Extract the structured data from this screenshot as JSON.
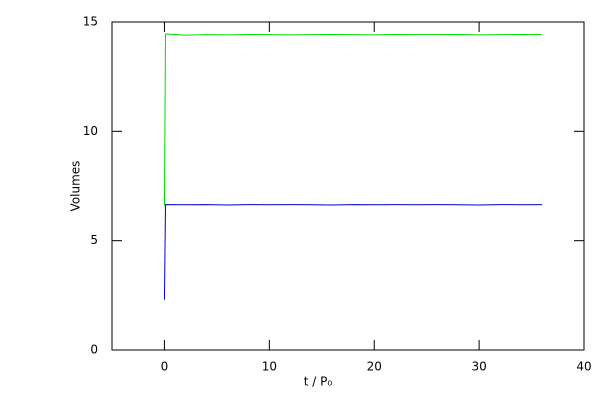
{
  "chart_data": {
    "type": "line",
    "xlabel": "t / P₀",
    "ylabel": "Volumes",
    "x": [
      0,
      0.1,
      2,
      4,
      6,
      8,
      10,
      12,
      14,
      16,
      18,
      20,
      22,
      24,
      26,
      28,
      30,
      32,
      34,
      36
    ],
    "series": [
      {
        "color": "#00dd00",
        "values": [
          6.6,
          14.45,
          14.4,
          14.42,
          14.41,
          14.43,
          14.42,
          14.41,
          14.42,
          14.43,
          14.42,
          14.41,
          14.43,
          14.42,
          14.42,
          14.43,
          14.41,
          14.42,
          14.43,
          14.42
        ]
      },
      {
        "color": "#0000cc",
        "values": [
          2.3,
          6.65,
          6.64,
          6.65,
          6.63,
          6.65,
          6.64,
          6.65,
          6.64,
          6.63,
          6.65,
          6.64,
          6.65,
          6.64,
          6.65,
          6.64,
          6.63,
          6.65,
          6.64,
          6.65
        ]
      }
    ],
    "xlim": [
      -5,
      40
    ],
    "xticks": [
      0,
      10,
      20,
      30,
      40
    ],
    "ylim": [
      0,
      15
    ],
    "yticks": [
      0,
      5,
      10,
      15
    ]
  }
}
